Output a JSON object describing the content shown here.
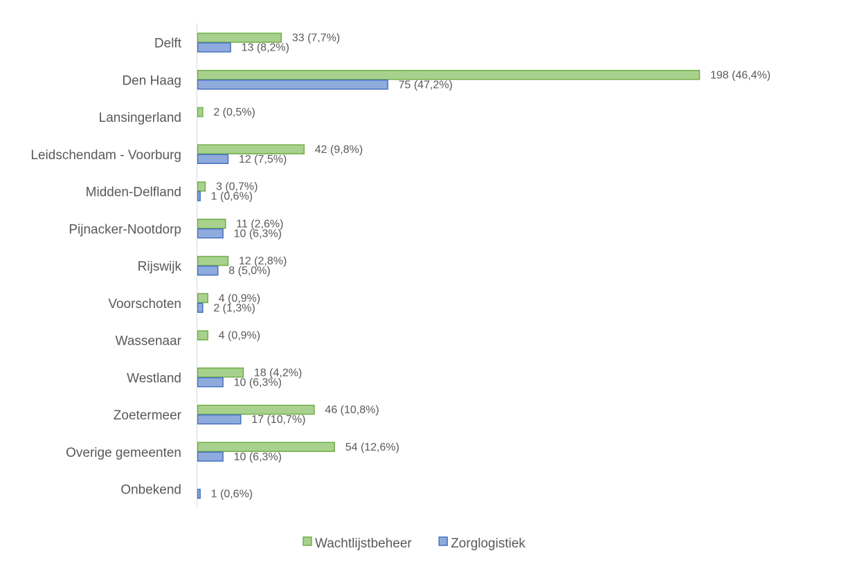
{
  "chart_data": {
    "type": "bar",
    "orientation": "horizontal",
    "categories": [
      "Delft",
      "Den Haag",
      "Lansingerland",
      "Leidschendam - Voorburg",
      "Midden-Delfland",
      "Pijnacker-Nootdorp",
      "Rijswijk",
      "Voorschoten",
      "Wassenaar",
      "Westland",
      "Zoetermeer",
      "Overige gemeenten",
      "Onbekend"
    ],
    "series": [
      {
        "name": "Wachtlijstbeheer",
        "color": "#a9d18e",
        "border": "#70ad47",
        "values": [
          33,
          198,
          2,
          42,
          3,
          11,
          12,
          4,
          4,
          18,
          46,
          54,
          null
        ],
        "labels": [
          "33 (7,7%)",
          "198 (46,4%)",
          "2 (0,5%)",
          "42 (9,8%)",
          "3 (0,7%)",
          "11 (2,6%)",
          "12 (2,8%)",
          "4 (0,9%)",
          "4 (0,9%)",
          "18 (4,2%)",
          "46 (10,8%)",
          "54 (12,6%)",
          ""
        ]
      },
      {
        "name": "Zorglogistiek",
        "color": "#8faadc",
        "border": "#4472c4",
        "values": [
          13,
          75,
          null,
          12,
          1,
          10,
          8,
          2,
          null,
          10,
          17,
          10,
          1
        ],
        "labels": [
          "13 (8,2%)",
          "75 (47,2%)",
          "",
          "12 (7,5%)",
          "1 (0,6%)",
          "10 (6,3%)",
          "8 (5,0%)",
          "2 (1,3%)",
          "",
          "10 (6,3%)",
          "17 (10,7%)",
          "10 (6,3%)",
          "1 (0,6%)"
        ]
      }
    ],
    "title": "",
    "xlabel": "",
    "ylabel": "",
    "grid": false,
    "legend_position": "bottom"
  }
}
